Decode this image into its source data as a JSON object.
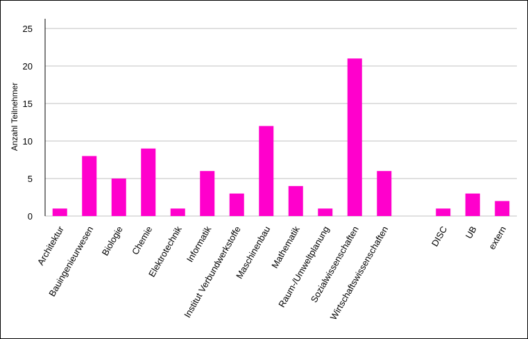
{
  "chart_data": {
    "type": "bar",
    "title": "",
    "xlabel": "",
    "ylabel": "Anzahl Teilnehmer",
    "ylim": [
      0,
      25
    ],
    "yticks": [
      0,
      5,
      10,
      15,
      20,
      25
    ],
    "grid": true,
    "bar_color": "#ff00cc",
    "grid_color": "#c0c0c0",
    "categories": [
      "Architektur",
      "Bauingenieurwesen",
      "Biologie",
      "Chemie",
      "Elektrotechnik",
      "Informatik",
      "Institut Verbundwerkstoffe",
      "Maschinenbau",
      "Mathematik",
      "Raum-/Umweltplanung",
      "Sozialwissenschaften",
      "Wirtschaftswissenschaften",
      "",
      "DISC",
      "UB",
      "extern"
    ],
    "values": [
      1,
      8,
      5,
      9,
      1,
      6,
      3,
      12,
      4,
      1,
      21,
      6,
      null,
      1,
      3,
      2
    ]
  }
}
